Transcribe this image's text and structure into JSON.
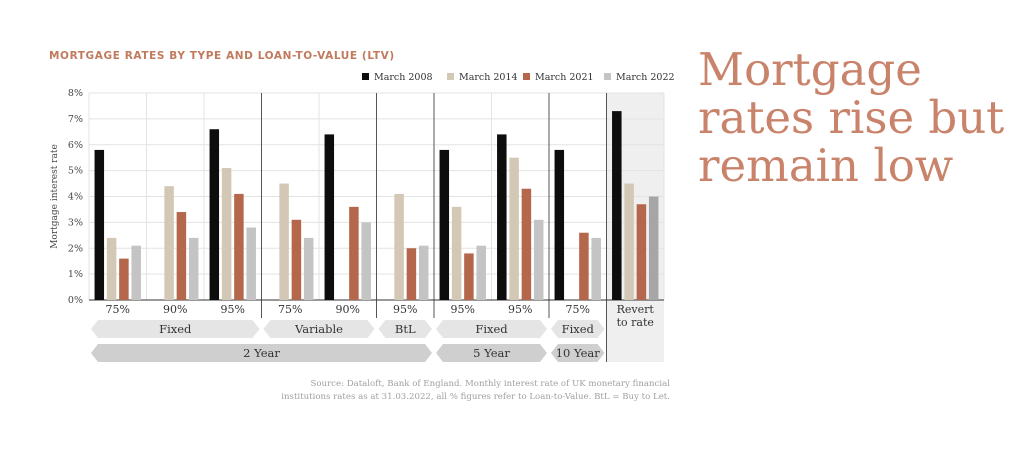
{
  "headline": [
    "Mortgage",
    "rates rise but",
    "remain low"
  ],
  "source": [
    "Source: Dataloft, Bank of England. Monthly interest rate of UK monetary financial",
    "institutions rates as at 31.03.2022, all % figures refer to Loan-to-Value. BtL = Buy to Let."
  ],
  "colors": {
    "title": "#c07a5e",
    "headline": "#c9836a",
    "March 2008": "#0d0d0d",
    "March 2014": "#d3c8b5",
    "March 2021": "#b5674b",
    "March 2022": "#c4c4c4",
    "March 2022 (Revert to rate)": "#a6a6a6",
    "tag": "#e5e5e5",
    "tag_dark": "#cfcfcf",
    "revert_panel": "#efefef"
  },
  "chart_data": {
    "type": "bar",
    "title": "MORTGAGE RATES BY TYPE AND LOAN-TO-VALUE (LTV)",
    "ylabel": "Mortgage interest rate",
    "ylim": [
      0,
      8
    ],
    "yticks": [
      "0%",
      "1%",
      "2%",
      "3%",
      "4%",
      "5%",
      "6%",
      "7%",
      "8%"
    ],
    "grid": true,
    "legend_position": "top-right",
    "categories": [
      "75%",
      "90%",
      "95%",
      "75%",
      "90%",
      "95%",
      "95%",
      "95%",
      "75%",
      "Revert to rate"
    ],
    "category_lines": [
      [
        "75%"
      ],
      [
        "90%"
      ],
      [
        "95%"
      ],
      [
        "75%"
      ],
      [
        "90%"
      ],
      [
        "95%"
      ],
      [
        "95%"
      ],
      [
        "95%"
      ],
      [
        "75%"
      ],
      [
        "Revert",
        "to rate"
      ]
    ],
    "series": [
      {
        "name": "March 2008",
        "values": [
          5.8,
          null,
          6.6,
          null,
          6.4,
          null,
          5.8,
          6.4,
          5.8,
          7.3
        ]
      },
      {
        "name": "March 2014",
        "values": [
          2.4,
          4.4,
          5.1,
          4.5,
          null,
          4.1,
          3.6,
          5.5,
          null,
          4.5
        ]
      },
      {
        "name": "March 2021",
        "values": [
          1.6,
          3.4,
          4.1,
          3.1,
          3.6,
          2.0,
          1.8,
          4.3,
          2.6,
          3.7
        ]
      },
      {
        "name": "March 2022",
        "values": [
          2.1,
          2.4,
          2.8,
          2.4,
          3.0,
          2.1,
          2.1,
          3.1,
          2.4,
          4.0
        ]
      }
    ],
    "group_labels_level1": [
      {
        "label": "Fixed",
        "span": [
          0,
          2
        ]
      },
      {
        "label": "Variable",
        "span": [
          3,
          4
        ]
      },
      {
        "label": "BtL",
        "span": [
          5,
          5
        ]
      },
      {
        "label": "Fixed",
        "span": [
          6,
          7
        ]
      },
      {
        "label": "Fixed",
        "span": [
          8,
          8
        ]
      }
    ],
    "group_labels_level2": [
      {
        "label": "2 Year",
        "span": [
          0,
          5
        ]
      },
      {
        "label": "5 Year",
        "span": [
          6,
          7
        ]
      },
      {
        "label": "10 Year",
        "span": [
          8,
          8
        ]
      }
    ]
  }
}
